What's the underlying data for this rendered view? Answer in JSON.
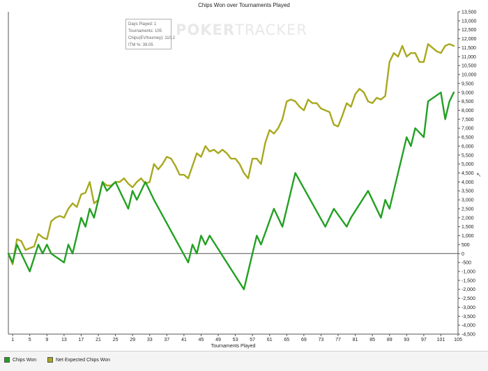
{
  "chart_data": {
    "type": "line",
    "title": "Chips Won over Tournaments Played",
    "xlabel": "Tournaments Played",
    "ylabel": "",
    "xlim": [
      0,
      105
    ],
    "ylim": [
      -4500,
      13500
    ],
    "xticks": [
      1,
      5,
      9,
      13,
      17,
      21,
      25,
      29,
      33,
      37,
      41,
      45,
      49,
      53,
      57,
      61,
      65,
      69,
      73,
      77,
      81,
      85,
      89,
      93,
      97,
      101,
      105
    ],
    "ytick_step": 500,
    "grid": false,
    "legend_position": "bottom-left",
    "series": [
      {
        "name": "Chips Won",
        "color": "#22a022",
        "x": [
          0,
          1,
          2,
          5,
          7,
          8,
          9,
          10,
          13,
          14,
          15,
          17,
          18,
          19,
          20,
          22,
          23,
          25,
          28,
          29,
          30,
          32,
          34,
          42,
          43,
          44,
          45,
          46,
          47,
          55,
          58,
          59,
          62,
          64,
          67,
          74,
          76,
          79,
          80,
          84,
          87,
          88,
          89,
          91,
          93,
          94,
          95,
          97,
          98,
          101,
          102,
          103,
          104
        ],
        "y": [
          0,
          -500,
          500,
          -1000,
          500,
          0,
          500,
          0,
          -500,
          500,
          0,
          2000,
          1500,
          2500,
          2000,
          4000,
          3500,
          4000,
          2500,
          3500,
          3000,
          4000,
          3000,
          -500,
          500,
          0,
          1000,
          500,
          1000,
          -2000,
          1000,
          500,
          2500,
          1500,
          4500,
          1500,
          2500,
          1500,
          2000,
          3500,
          2000,
          3000,
          2500,
          4500,
          6500,
          6000,
          7000,
          6500,
          8500,
          9000,
          7500,
          8500,
          9000
        ]
      },
      {
        "name": "Net Expected Chips Won",
        "color": "#a8a81e",
        "x": [
          0,
          1,
          2,
          3,
          4,
          5,
          6,
          7,
          8,
          9,
          10,
          11,
          12,
          13,
          14,
          15,
          16,
          17,
          18,
          19,
          20,
          21,
          22,
          23,
          24,
          25,
          26,
          27,
          28,
          29,
          30,
          31,
          32,
          33,
          34,
          35,
          36,
          37,
          38,
          39,
          40,
          41,
          42,
          43,
          44,
          45,
          46,
          47,
          48,
          49,
          50,
          51,
          52,
          53,
          54,
          55,
          56,
          57,
          58,
          59,
          60,
          61,
          62,
          63,
          64,
          65,
          66,
          67,
          68,
          69,
          70,
          71,
          72,
          73,
          74,
          75,
          76,
          77,
          78,
          79,
          80,
          81,
          82,
          83,
          84,
          85,
          86,
          87,
          88,
          89,
          90,
          91,
          92,
          93,
          94,
          95,
          96,
          97,
          98,
          99,
          100,
          101,
          102,
          103,
          104
        ],
        "y": [
          0,
          -600,
          800,
          700,
          200,
          300,
          400,
          1100,
          900,
          800,
          1800,
          2000,
          2100,
          2000,
          2500,
          2800,
          2600,
          3300,
          3400,
          4000,
          2800,
          3000,
          4000,
          3800,
          3800,
          4000,
          4000,
          4200,
          3900,
          3700,
          4000,
          4200,
          3900,
          4000,
          5000,
          4700,
          5000,
          5400,
          5300,
          4900,
          4400,
          4400,
          4200,
          4900,
          5600,
          5400,
          6000,
          5700,
          5800,
          5600,
          5800,
          5600,
          5300,
          5300,
          5000,
          4500,
          4200,
          5300,
          5300,
          5000,
          6200,
          6900,
          6700,
          7000,
          7500,
          8500,
          8600,
          8500,
          8200,
          8000,
          8600,
          8400,
          8400,
          8100,
          8000,
          7900,
          7200,
          7100,
          7700,
          8400,
          8200,
          8900,
          9200,
          9000,
          8500,
          8400,
          8700,
          8600,
          8800,
          10700,
          11200,
          11000,
          11600,
          11000,
          11200,
          11200,
          10700,
          10700,
          11700,
          11500,
          11300,
          11200,
          11600,
          11700,
          11600
        ]
      }
    ]
  },
  "info_box": {
    "line1": "Days Played: 1",
    "line2": "Tournaments: 105",
    "line3": "Chips(EV/tourney): 110.2",
    "line4": "ITM %: 39.05"
  },
  "watermark": {
    "part1": "POKER",
    "part2": "TRACKER"
  },
  "legend": {
    "item1": "Chips Won",
    "item2": "Net Expected Chips Won"
  }
}
